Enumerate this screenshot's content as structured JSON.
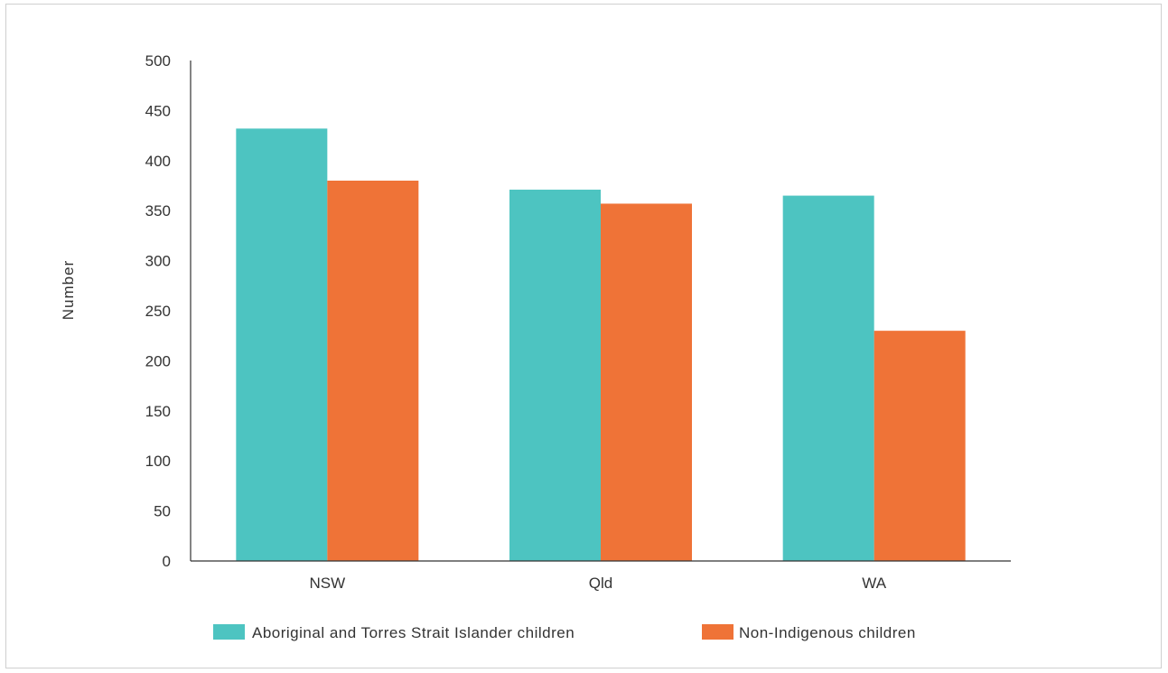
{
  "chart_data": {
    "type": "bar",
    "categories": [
      "NSW",
      "Qld",
      "WA"
    ],
    "series": [
      {
        "name": "Aboriginal and Torres Strait Islander children",
        "color": "#4dc4c1",
        "values": [
          432,
          371,
          365
        ]
      },
      {
        "name": "Non-Indigenous children",
        "color": "#ef7337",
        "values": [
          380,
          357,
          230
        ]
      }
    ],
    "xlabel": "",
    "ylabel": "Number",
    "ylim": [
      0,
      500
    ],
    "yticks": [
      "0",
      "50",
      "100",
      "150",
      "200",
      "250",
      "300",
      "350",
      "400",
      "450",
      "500"
    ],
    "grid": false,
    "legend_position": "bottom"
  }
}
